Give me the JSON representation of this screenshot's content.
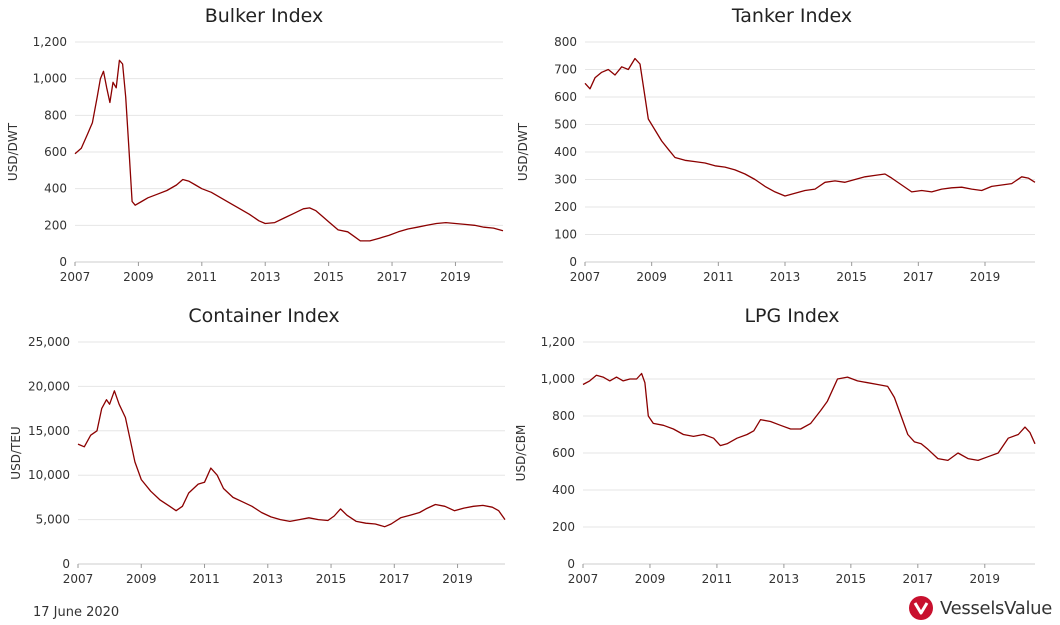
{
  "footer": {
    "date": "17 June 2020",
    "brand": "VesselsValue",
    "brand_color": "#c8102e"
  },
  "line_color": "#8b0000",
  "chart_data": [
    {
      "type": "line",
      "title": "Bulker Index",
      "ylabel": "USD/DWT",
      "xlim": [
        2007.0,
        2020.5
      ],
      "ylim": [
        0,
        1200
      ],
      "yticks": [
        0,
        200,
        400,
        600,
        800,
        1000,
        1200
      ],
      "ytick_labels": [
        "0",
        "200",
        "400",
        "600",
        "800",
        "1,000",
        "1,200"
      ],
      "xticks": [
        2007,
        2009,
        2011,
        2013,
        2015,
        2017,
        2019
      ],
      "grid": true,
      "points": [
        [
          2007.0,
          590
        ],
        [
          2007.2,
          620
        ],
        [
          2007.4,
          700
        ],
        [
          2007.55,
          760
        ],
        [
          2007.7,
          900
        ],
        [
          2007.8,
          1000
        ],
        [
          2007.9,
          1040
        ],
        [
          2008.0,
          950
        ],
        [
          2008.1,
          870
        ],
        [
          2008.2,
          980
        ],
        [
          2008.3,
          950
        ],
        [
          2008.4,
          1100
        ],
        [
          2008.5,
          1080
        ],
        [
          2008.6,
          900
        ],
        [
          2008.7,
          620
        ],
        [
          2008.8,
          330
        ],
        [
          2008.9,
          310
        ],
        [
          2009.1,
          330
        ],
        [
          2009.3,
          350
        ],
        [
          2009.6,
          370
        ],
        [
          2009.9,
          390
        ],
        [
          2010.2,
          420
        ],
        [
          2010.4,
          450
        ],
        [
          2010.6,
          440
        ],
        [
          2010.8,
          420
        ],
        [
          2011.0,
          400
        ],
        [
          2011.3,
          380
        ],
        [
          2011.6,
          350
        ],
        [
          2011.9,
          320
        ],
        [
          2012.2,
          290
        ],
        [
          2012.5,
          260
        ],
        [
          2012.8,
          225
        ],
        [
          2013.0,
          210
        ],
        [
          2013.3,
          215
        ],
        [
          2013.6,
          240
        ],
        [
          2013.9,
          265
        ],
        [
          2014.2,
          290
        ],
        [
          2014.4,
          295
        ],
        [
          2014.6,
          280
        ],
        [
          2014.8,
          250
        ],
        [
          2015.0,
          220
        ],
        [
          2015.3,
          175
        ],
        [
          2015.6,
          165
        ],
        [
          2015.8,
          140
        ],
        [
          2016.0,
          115
        ],
        [
          2016.3,
          115
        ],
        [
          2016.6,
          130
        ],
        [
          2016.9,
          145
        ],
        [
          2017.2,
          165
        ],
        [
          2017.5,
          180
        ],
        [
          2017.8,
          190
        ],
        [
          2018.1,
          200
        ],
        [
          2018.4,
          210
        ],
        [
          2018.7,
          215
        ],
        [
          2019.0,
          210
        ],
        [
          2019.3,
          205
        ],
        [
          2019.6,
          200
        ],
        [
          2019.9,
          190
        ],
        [
          2020.2,
          185
        ],
        [
          2020.5,
          170
        ]
      ]
    },
    {
      "type": "line",
      "title": "Tanker Index",
      "ylabel": "USD/DWT",
      "xlim": [
        2007.0,
        2020.5
      ],
      "ylim": [
        0,
        800
      ],
      "yticks": [
        0,
        100,
        200,
        300,
        400,
        500,
        600,
        700,
        800
      ],
      "ytick_labels": [
        "0",
        "100",
        "200",
        "300",
        "400",
        "500",
        "600",
        "700",
        "800"
      ],
      "xticks": [
        2007,
        2009,
        2011,
        2013,
        2015,
        2017,
        2019
      ],
      "grid": true,
      "points": [
        [
          2007.0,
          650
        ],
        [
          2007.15,
          630
        ],
        [
          2007.3,
          670
        ],
        [
          2007.5,
          690
        ],
        [
          2007.7,
          700
        ],
        [
          2007.9,
          680
        ],
        [
          2008.1,
          710
        ],
        [
          2008.3,
          700
        ],
        [
          2008.5,
          740
        ],
        [
          2008.65,
          720
        ],
        [
          2008.8,
          600
        ],
        [
          2008.9,
          520
        ],
        [
          2009.1,
          480
        ],
        [
          2009.3,
          440
        ],
        [
          2009.5,
          410
        ],
        [
          2009.7,
          380
        ],
        [
          2010.0,
          370
        ],
        [
          2010.3,
          365
        ],
        [
          2010.6,
          360
        ],
        [
          2010.9,
          350
        ],
        [
          2011.2,
          345
        ],
        [
          2011.5,
          335
        ],
        [
          2011.8,
          320
        ],
        [
          2012.1,
          300
        ],
        [
          2012.4,
          275
        ],
        [
          2012.7,
          255
        ],
        [
          2013.0,
          240
        ],
        [
          2013.3,
          250
        ],
        [
          2013.6,
          260
        ],
        [
          2013.9,
          265
        ],
        [
          2014.2,
          290
        ],
        [
          2014.5,
          295
        ],
        [
          2014.8,
          290
        ],
        [
          2015.1,
          300
        ],
        [
          2015.4,
          310
        ],
        [
          2015.7,
          315
        ],
        [
          2016.0,
          320
        ],
        [
          2016.2,
          305
        ],
        [
          2016.5,
          280
        ],
        [
          2016.8,
          255
        ],
        [
          2017.1,
          260
        ],
        [
          2017.4,
          255
        ],
        [
          2017.7,
          265
        ],
        [
          2018.0,
          270
        ],
        [
          2018.3,
          272
        ],
        [
          2018.6,
          265
        ],
        [
          2018.9,
          260
        ],
        [
          2019.2,
          275
        ],
        [
          2019.5,
          280
        ],
        [
          2019.8,
          285
        ],
        [
          2020.1,
          310
        ],
        [
          2020.3,
          305
        ],
        [
          2020.5,
          290
        ]
      ]
    },
    {
      "type": "line",
      "title": "Container Index",
      "ylabel": "USD/TEU",
      "xlim": [
        2007.0,
        2020.5
      ],
      "ylim": [
        0,
        25000
      ],
      "yticks": [
        0,
        5000,
        10000,
        15000,
        20000,
        25000
      ],
      "ytick_labels": [
        "0",
        "5,000",
        "10,000",
        "15,000",
        "20,000",
        "25,000"
      ],
      "xticks": [
        2007,
        2009,
        2011,
        2013,
        2015,
        2017,
        2019
      ],
      "grid": true,
      "points": [
        [
          2007.0,
          13500
        ],
        [
          2007.2,
          13200
        ],
        [
          2007.4,
          14500
        ],
        [
          2007.6,
          15000
        ],
        [
          2007.75,
          17500
        ],
        [
          2007.9,
          18500
        ],
        [
          2008.0,
          18000
        ],
        [
          2008.15,
          19500
        ],
        [
          2008.3,
          18000
        ],
        [
          2008.5,
          16500
        ],
        [
          2008.65,
          14000
        ],
        [
          2008.8,
          11500
        ],
        [
          2009.0,
          9500
        ],
        [
          2009.3,
          8200
        ],
        [
          2009.6,
          7200
        ],
        [
          2009.9,
          6500
        ],
        [
          2010.1,
          6000
        ],
        [
          2010.3,
          6500
        ],
        [
          2010.5,
          8000
        ],
        [
          2010.8,
          9000
        ],
        [
          2011.0,
          9200
        ],
        [
          2011.2,
          10800
        ],
        [
          2011.4,
          10000
        ],
        [
          2011.6,
          8500
        ],
        [
          2011.9,
          7500
        ],
        [
          2012.2,
          7000
        ],
        [
          2012.5,
          6500
        ],
        [
          2012.8,
          5800
        ],
        [
          2013.1,
          5300
        ],
        [
          2013.4,
          5000
        ],
        [
          2013.7,
          4800
        ],
        [
          2014.0,
          5000
        ],
        [
          2014.3,
          5200
        ],
        [
          2014.6,
          5000
        ],
        [
          2014.9,
          4900
        ],
        [
          2015.1,
          5400
        ],
        [
          2015.3,
          6200
        ],
        [
          2015.5,
          5500
        ],
        [
          2015.8,
          4800
        ],
        [
          2016.1,
          4600
        ],
        [
          2016.4,
          4500
        ],
        [
          2016.7,
          4200
        ],
        [
          2016.9,
          4500
        ],
        [
          2017.2,
          5200
        ],
        [
          2017.5,
          5500
        ],
        [
          2017.8,
          5800
        ],
        [
          2018.0,
          6200
        ],
        [
          2018.3,
          6700
        ],
        [
          2018.6,
          6500
        ],
        [
          2018.9,
          6000
        ],
        [
          2019.2,
          6300
        ],
        [
          2019.5,
          6500
        ],
        [
          2019.8,
          6600
        ],
        [
          2020.1,
          6400
        ],
        [
          2020.3,
          6000
        ],
        [
          2020.5,
          5000
        ]
      ]
    },
    {
      "type": "line",
      "title": "LPG Index",
      "ylabel": "USD/CBM",
      "xlim": [
        2007.0,
        2020.5
      ],
      "ylim": [
        0,
        1200
      ],
      "yticks": [
        0,
        200,
        400,
        600,
        800,
        1000,
        1200
      ],
      "ytick_labels": [
        "0",
        "200",
        "400",
        "600",
        "800",
        "1,000",
        "1,200"
      ],
      "xticks": [
        2007,
        2009,
        2011,
        2013,
        2015,
        2017,
        2019
      ],
      "grid": true,
      "points": [
        [
          2007.0,
          970
        ],
        [
          2007.2,
          990
        ],
        [
          2007.4,
          1020
        ],
        [
          2007.6,
          1010
        ],
        [
          2007.8,
          990
        ],
        [
          2008.0,
          1010
        ],
        [
          2008.2,
          990
        ],
        [
          2008.4,
          1000
        ],
        [
          2008.6,
          1000
        ],
        [
          2008.75,
          1030
        ],
        [
          2008.85,
          980
        ],
        [
          2008.95,
          800
        ],
        [
          2009.1,
          760
        ],
        [
          2009.4,
          750
        ],
        [
          2009.7,
          730
        ],
        [
          2010.0,
          700
        ],
        [
          2010.3,
          690
        ],
        [
          2010.6,
          700
        ],
        [
          2010.9,
          680
        ],
        [
          2011.1,
          640
        ],
        [
          2011.3,
          650
        ],
        [
          2011.6,
          680
        ],
        [
          2011.9,
          700
        ],
        [
          2012.1,
          720
        ],
        [
          2012.3,
          780
        ],
        [
          2012.6,
          770
        ],
        [
          2012.9,
          750
        ],
        [
          2013.2,
          730
        ],
        [
          2013.5,
          730
        ],
        [
          2013.8,
          760
        ],
        [
          2014.1,
          830
        ],
        [
          2014.3,
          880
        ],
        [
          2014.6,
          1000
        ],
        [
          2014.9,
          1010
        ],
        [
          2015.2,
          990
        ],
        [
          2015.5,
          980
        ],
        [
          2015.8,
          970
        ],
        [
          2016.1,
          960
        ],
        [
          2016.3,
          900
        ],
        [
          2016.5,
          800
        ],
        [
          2016.7,
          700
        ],
        [
          2016.9,
          660
        ],
        [
          2017.1,
          650
        ],
        [
          2017.3,
          620
        ],
        [
          2017.6,
          570
        ],
        [
          2017.9,
          560
        ],
        [
          2018.2,
          600
        ],
        [
          2018.5,
          570
        ],
        [
          2018.8,
          560
        ],
        [
          2019.1,
          580
        ],
        [
          2019.4,
          600
        ],
        [
          2019.7,
          680
        ],
        [
          2020.0,
          700
        ],
        [
          2020.2,
          740
        ],
        [
          2020.35,
          710
        ],
        [
          2020.5,
          650
        ]
      ]
    }
  ]
}
